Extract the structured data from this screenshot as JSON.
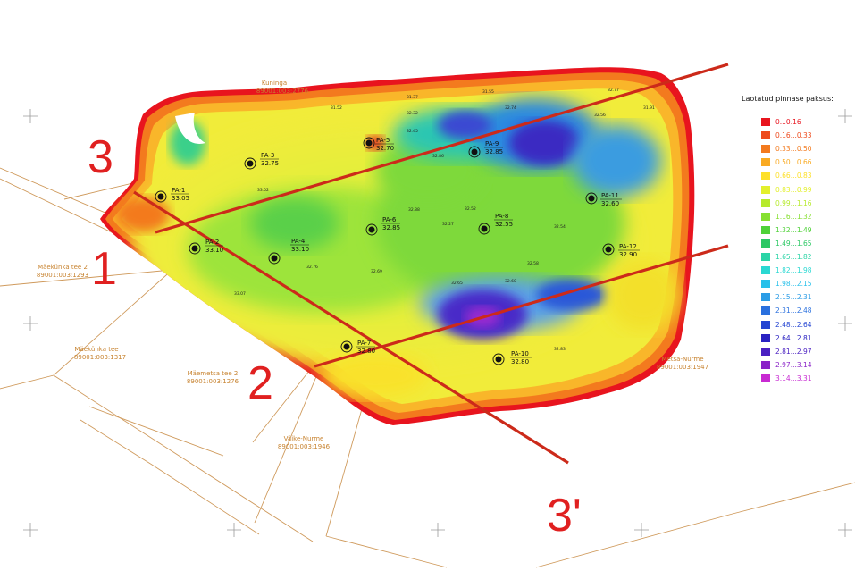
{
  "legend": {
    "title": "Laotatud pinnase paksus:",
    "items": [
      {
        "label": "0...0.16",
        "color": "#e8141e"
      },
      {
        "label": "0.16...0.33",
        "color": "#ee4a1c"
      },
      {
        "label": "0.33...0.50",
        "color": "#f37a1e"
      },
      {
        "label": "0.50...0.66",
        "color": "#f9aa22"
      },
      {
        "label": "0.66...0.83",
        "color": "#fde02a"
      },
      {
        "label": "0.83...0.99",
        "color": "#e3f02c"
      },
      {
        "label": "0.99...1.16",
        "color": "#b6ea2c"
      },
      {
        "label": "1.16...1.32",
        "color": "#86e030"
      },
      {
        "label": "1.32...1.49",
        "color": "#4fd238"
      },
      {
        "label": "1.49...1.65",
        "color": "#2cc864"
      },
      {
        "label": "1.65...1.82",
        "color": "#2ad4a6"
      },
      {
        "label": "1.82...1.98",
        "color": "#2ad8d2"
      },
      {
        "label": "1.98...2.15",
        "color": "#28c0ea"
      },
      {
        "label": "2.15...2.31",
        "color": "#2a9ce6"
      },
      {
        "label": "2.31...2.48",
        "color": "#2a70de"
      },
      {
        "label": "2.48...2.64",
        "color": "#2444d2"
      },
      {
        "label": "2.64...2.81",
        "color": "#2a22c2"
      },
      {
        "label": "2.81...2.97",
        "color": "#4a20c2"
      },
      {
        "label": "2.97...3.14",
        "color": "#8a22c8"
      },
      {
        "label": "3.14...3.31",
        "color": "#c82ad2"
      }
    ]
  },
  "parcels": [
    {
      "name": "Kuninga",
      "code": "89001:003:2776"
    },
    {
      "name": "Mäekünka tee 2",
      "code": "89001:003:1293"
    },
    {
      "name": "Mäekünka tee",
      "code": "89001:003:1317"
    },
    {
      "name": "Mäemetsa tee 2",
      "code": "89001:003:1276"
    },
    {
      "name": "Väike-Nurme",
      "code": "89001:003:1946"
    },
    {
      "name": "Metsa-Nurme",
      "code": "89001:003:1947"
    }
  ],
  "sections": [
    {
      "label": "1"
    },
    {
      "label": "2"
    },
    {
      "label": "3"
    },
    {
      "label": "3'"
    }
  ],
  "boreholes": [
    {
      "id": "PA-1",
      "elev": "33.05"
    },
    {
      "id": "PA-2",
      "elev": "33.10"
    },
    {
      "id": "PA-3",
      "elev": "32.75"
    },
    {
      "id": "PA-4",
      "elev": "33.10"
    },
    {
      "id": "PA-5",
      "elev": "32.70"
    },
    {
      "id": "PA-6",
      "elev": "32.85"
    },
    {
      "id": "PA-7",
      "elev": "32.80"
    },
    {
      "id": "PA-8",
      "elev": "32.55"
    },
    {
      "id": "PA-9",
      "elev": "32.85"
    },
    {
      "id": "PA-10",
      "elev": "32.80"
    },
    {
      "id": "PA-11",
      "elev": "32.60"
    },
    {
      "id": "PA-12",
      "elev": "32.90"
    }
  ],
  "spot_heights": [
    "31.52",
    "31.37",
    "32.32",
    "32.45",
    "31.55",
    "32.74",
    "32.77",
    "32.56",
    "31.91",
    "32.86",
    "33.02",
    "32.88",
    "32.52",
    "32.27",
    "32.76",
    "32.69",
    "32.65",
    "32.60",
    "32.58",
    "32.54",
    "33.07",
    "32.83"
  ],
  "colors": {
    "section_line": "#cc2a1a",
    "parcel_line": "#cf9a5c",
    "cross": "#9a9a9a",
    "label_red": "#e02020"
  }
}
